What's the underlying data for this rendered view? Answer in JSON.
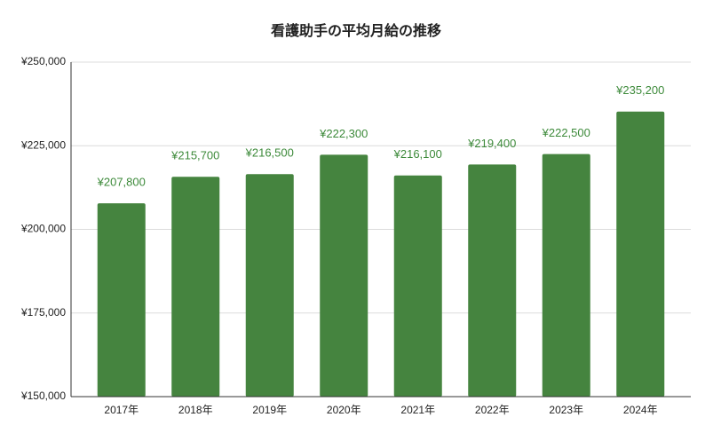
{
  "chart_data": {
    "type": "bar",
    "title": "看護助手の平均月給の推移",
    "categories": [
      "2017年",
      "2018年",
      "2019年",
      "2020年",
      "2021年",
      "2022年",
      "2023年",
      "2024年"
    ],
    "values": [
      207800,
      215700,
      216500,
      222300,
      216100,
      219400,
      222500,
      235200
    ],
    "value_labels": [
      "¥207,800",
      "¥215,700",
      "¥216,500",
      "¥222,300",
      "¥216,100",
      "¥219,400",
      "¥222,500",
      "¥235,200"
    ],
    "color": "#45843f",
    "ylim": [
      150000,
      250000
    ],
    "yticks": [
      {
        "value": 150000,
        "label": "¥150,000"
      },
      {
        "value": 175000,
        "label": "¥175,000"
      },
      {
        "value": 200000,
        "label": "¥200,000"
      },
      {
        "value": 225000,
        "label": "¥225,000"
      },
      {
        "value": 250000,
        "label": "¥250,000"
      }
    ],
    "grid": true
  }
}
